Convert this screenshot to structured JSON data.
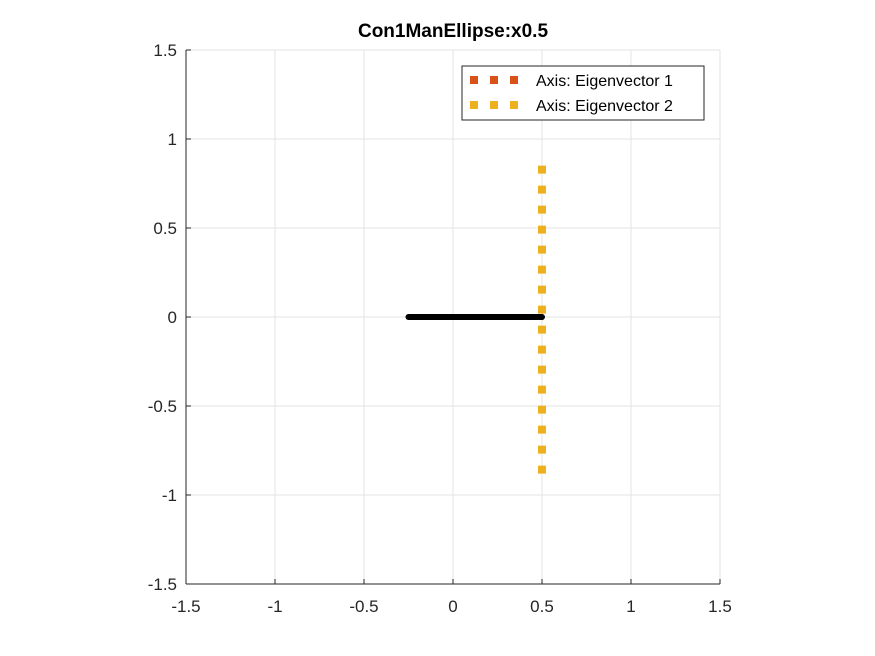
{
  "chart_data": {
    "type": "line",
    "title": "Con1ManEllipse:x0.5",
    "xlabel": "",
    "ylabel": "",
    "xlim": [
      -1.5,
      1.5
    ],
    "ylim": [
      -1.5,
      1.5
    ],
    "xticks": [
      -1.5,
      -1,
      -0.5,
      0,
      0.5,
      1,
      1.5
    ],
    "yticks": [
      -1.5,
      -1,
      -0.5,
      0,
      0.5,
      1,
      1.5
    ],
    "xtick_labels": [
      "-1.5",
      "-1",
      "-0.5",
      "0",
      "0.5",
      "1",
      "1.5"
    ],
    "ytick_labels": [
      "-1.5",
      "-1",
      "-0.5",
      "0",
      "0.5",
      "1",
      "1.5"
    ],
    "grid": true,
    "legend_position": "top-right",
    "legend": [
      {
        "label": "Axis: Eigenvector 1",
        "color": "#D95319"
      },
      {
        "label": "Axis: Eigenvector 2",
        "color": "#EDB120"
      }
    ],
    "series": [
      {
        "name": "Axis: Eigenvector 1",
        "color": "#D95319",
        "style": "dotted",
        "x": [
          0.5,
          0.5
        ],
        "y": [
          0,
          0
        ]
      },
      {
        "name": "Axis: Eigenvector 2",
        "color": "#EDB120",
        "style": "dotted",
        "x": [
          0.5,
          0.5
        ],
        "y": [
          -0.88,
          0.9
        ]
      },
      {
        "color": "#000000",
        "style": "solid",
        "x": [
          -0.25,
          0.5
        ],
        "y": [
          0,
          0
        ]
      }
    ]
  }
}
